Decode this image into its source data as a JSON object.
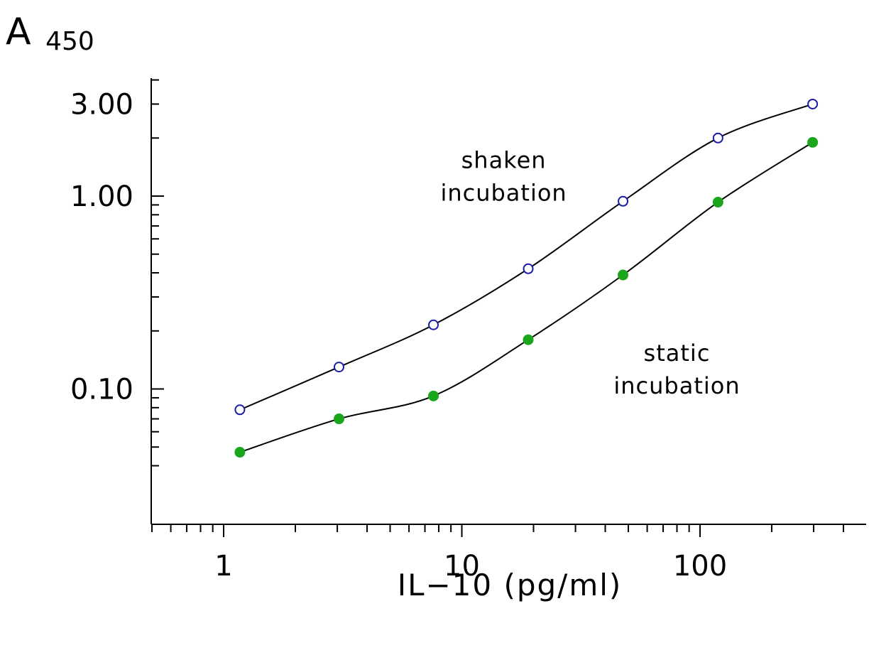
{
  "chart_data": {
    "type": "scatter",
    "title": "",
    "ylabel_main": "A",
    "ylabel_sub": "450",
    "xlabel": "IL−10  (pg/ml)",
    "x_scale": "log",
    "y_scale": "log",
    "xlim": [
      0.5,
      400
    ],
    "ylim": [
      0.035,
      4.0
    ],
    "x_ticks": [
      {
        "value": 1,
        "label": "1"
      },
      {
        "value": 10,
        "label": "10"
      },
      {
        "value": 100,
        "label": "100"
      }
    ],
    "y_ticks": [
      {
        "value": 0.1,
        "label": "0.10"
      },
      {
        "value": 1.0,
        "label": "1.00"
      },
      {
        "value": 3.0,
        "label": "3.00"
      }
    ],
    "grid": false,
    "legend": "none",
    "annotations": [
      {
        "lines": [
          "shaken",
          "incubation"
        ],
        "x": 15,
        "y": 1.4
      },
      {
        "lines": [
          "static",
          "incubation"
        ],
        "x": 80,
        "y": 0.14
      }
    ],
    "series": [
      {
        "marker": "open-circle",
        "color": "#1a1aa6",
        "x": [
          1.17,
          3.05,
          7.6,
          19.0,
          47.5,
          119,
          297
        ],
        "y": [
          0.078,
          0.13,
          0.215,
          0.42,
          0.94,
          2.0,
          3.0
        ]
      },
      {
        "marker": "filled-circle",
        "color": "#1aa61a",
        "x": [
          1.17,
          3.05,
          7.6,
          19.0,
          47.5,
          119,
          297
        ],
        "y": [
          0.047,
          0.07,
          0.092,
          0.18,
          0.39,
          0.93,
          1.9
        ]
      }
    ]
  }
}
